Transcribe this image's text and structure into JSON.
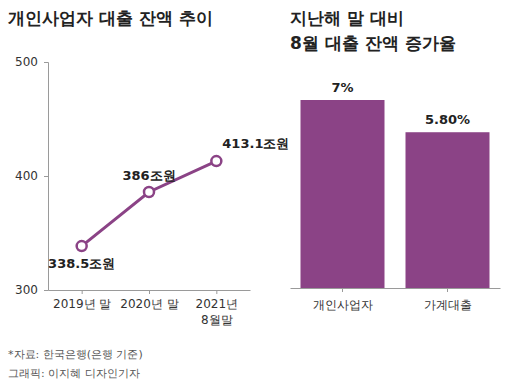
{
  "chart_data": [
    {
      "type": "line",
      "title": "개인사업자 대출 잔액 추이",
      "categories": [
        "2019년 말",
        "2020년 말",
        "2021년\n8월말"
      ],
      "values": [
        338.5,
        386,
        413.1
      ],
      "value_labels": [
        "338.5조원",
        "386조원",
        "413.1조원"
      ],
      "ylim": [
        300,
        500
      ],
      "yticks": [
        300,
        400,
        500
      ],
      "color": "#8b4386",
      "marker": "circle",
      "grid": false,
      "data_labels": true
    },
    {
      "type": "bar",
      "title": "지난해 말 대비\n8월 대출 잔액 증가율",
      "categories": [
        "개인사업자",
        "가계대출"
      ],
      "values": [
        7,
        5.8
      ],
      "value_labels": [
        "7%",
        "5.80%"
      ],
      "ylim": [
        0,
        7
      ],
      "color": "#8b4386",
      "tick_labels": "x",
      "data_labels": true
    }
  ],
  "notes": [
    "*자료: 한국은행(은행 기준)",
    "그래픽: 이지혜 디자인기자"
  ]
}
